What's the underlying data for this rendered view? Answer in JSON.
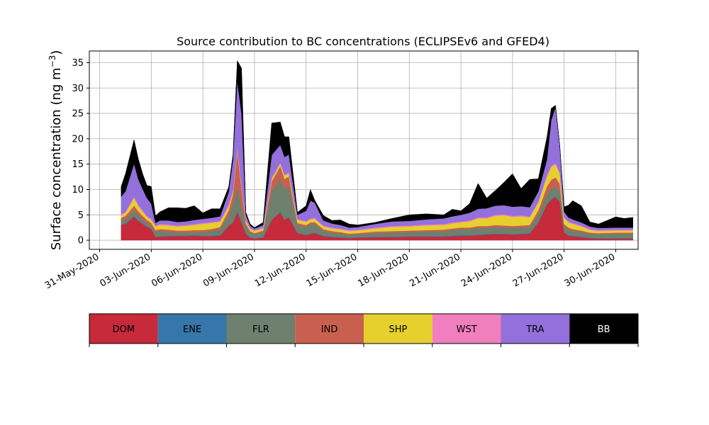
{
  "chart_data": {
    "type": "area",
    "stacked": true,
    "title": "Source contribution to BC concentrations (ECLIPSEv6 and GFED4)",
    "ylabel": "Surface concentration (ng m",
    "ylabel_exponent": "−3",
    "ylabel_suffix": ")",
    "ylim": [
      -1.8,
      37.3
    ],
    "yticks": [
      0,
      5,
      10,
      15,
      20,
      25,
      30,
      35
    ],
    "xlim": [
      -0.6,
      31.3
    ],
    "xtick_days": [
      0,
      3,
      6,
      9,
      12,
      15,
      18,
      21,
      24,
      27,
      30
    ],
    "xtick_labels": [
      "31-May-2020",
      "03-Jun-2020",
      "06-Jun-2020",
      "09-Jun-2020",
      "12-Jun-2020",
      "15-Jun-2020",
      "18-Jun-2020",
      "21-Jun-2020",
      "24-Jun-2020",
      "27-Jun-2020",
      "30-Jun-2020"
    ],
    "x_unit": "days since 31-May-2020",
    "grid": true,
    "x": [
      1.25,
      1.5,
      2.0,
      2.25,
      2.5,
      2.75,
      3.0,
      3.25,
      3.5,
      4.0,
      4.5,
      5.0,
      5.5,
      6.0,
      6.5,
      7.0,
      7.5,
      7.75,
      8.0,
      8.25,
      8.5,
      8.75,
      9.0,
      9.5,
      10.0,
      10.5,
      10.75,
      11.0,
      11.5,
      12.0,
      12.25,
      12.5,
      13.0,
      13.5,
      14.0,
      14.5,
      15.0,
      16.0,
      17.0,
      18.0,
      19.0,
      20.0,
      20.5,
      21.0,
      21.5,
      22.0,
      22.5,
      23.0,
      23.5,
      24.0,
      24.5,
      25.0,
      25.5,
      26.0,
      26.25,
      26.5,
      26.75,
      27.0,
      27.25,
      27.5,
      28.0,
      28.5,
      29.0,
      30.0,
      30.5,
      31.0
    ],
    "series": [
      {
        "name": "DOM",
        "color": "#c62a3b",
        "values": [
          3.0,
          3.2,
          4.6,
          3.8,
          3.2,
          2.6,
          2.2,
          0.6,
          0.7,
          0.8,
          0.8,
          0.8,
          0.9,
          0.8,
          0.8,
          0.9,
          2.8,
          3.5,
          5.5,
          3.5,
          1.2,
          0.5,
          0.3,
          0.5,
          4.0,
          5.5,
          4.0,
          4.5,
          1.4,
          1.0,
          1.2,
          1.4,
          0.8,
          0.6,
          0.5,
          0.4,
          0.5,
          0.6,
          0.6,
          0.7,
          0.7,
          0.7,
          0.8,
          0.9,
          0.9,
          1.0,
          1.1,
          1.2,
          1.2,
          1.1,
          1.2,
          1.3,
          3.5,
          7.0,
          8.0,
          8.5,
          7.5,
          1.5,
          0.9,
          0.8,
          0.6,
          0.4,
          0.3,
          0.3,
          0.3,
          0.3
        ]
      },
      {
        "name": "ENE",
        "color": "#3776ab",
        "values": [
          0.1,
          0.1,
          0.1,
          0.1,
          0.1,
          0.1,
          0.1,
          0.1,
          0.1,
          0.1,
          0.1,
          0.1,
          0.1,
          0.1,
          0.1,
          0.1,
          0.1,
          0.1,
          0.1,
          0.1,
          0.1,
          0.1,
          0.1,
          0.1,
          0.1,
          0.1,
          0.1,
          0.1,
          0.1,
          0.1,
          0.1,
          0.1,
          0.1,
          0.1,
          0.1,
          0.1,
          0.1,
          0.1,
          0.1,
          0.1,
          0.1,
          0.1,
          0.1,
          0.1,
          0.1,
          0.1,
          0.1,
          0.1,
          0.1,
          0.1,
          0.1,
          0.1,
          0.1,
          0.1,
          0.1,
          0.1,
          0.1,
          0.1,
          0.1,
          0.1,
          0.1,
          0.1,
          0.1,
          0.1,
          0.1,
          0.1
        ]
      },
      {
        "name": "FLR",
        "color": "#6e806e",
        "values": [
          0.7,
          0.8,
          1.2,
          1.0,
          0.8,
          0.7,
          0.6,
          0.9,
          1.0,
          0.8,
          0.6,
          0.6,
          0.6,
          0.7,
          0.9,
          1.2,
          2.0,
          3.5,
          5.0,
          3.0,
          1.5,
          0.9,
          0.8,
          1.0,
          5.5,
          6.5,
          6.0,
          6.0,
          1.5,
          1.5,
          1.8,
          1.7,
          1.0,
          0.8,
          0.7,
          0.6,
          0.6,
          0.7,
          0.8,
          0.8,
          0.9,
          1.0,
          1.1,
          1.2,
          1.2,
          1.3,
          1.2,
          1.3,
          1.2,
          1.2,
          1.2,
          1.2,
          1.5,
          2.0,
          2.0,
          2.0,
          2.0,
          1.2,
          1.1,
          1.0,
          0.9,
          0.8,
          0.8,
          0.9,
          0.9,
          0.9
        ]
      },
      {
        "name": "IND",
        "color": "#c9604f",
        "values": [
          0.6,
          0.7,
          0.9,
          0.8,
          0.7,
          0.6,
          0.5,
          0.4,
          0.4,
          0.4,
          0.4,
          0.4,
          0.4,
          0.4,
          0.4,
          0.4,
          1.0,
          2.0,
          7.0,
          3.5,
          0.5,
          0.3,
          0.2,
          0.3,
          2.0,
          2.5,
          2.0,
          2.0,
          0.4,
          0.4,
          0.4,
          0.4,
          0.3,
          0.3,
          0.3,
          0.2,
          0.2,
          0.3,
          0.3,
          0.3,
          0.3,
          0.3,
          0.3,
          0.3,
          0.3,
          0.4,
          0.4,
          0.4,
          0.4,
          0.4,
          0.4,
          0.4,
          0.8,
          1.5,
          1.8,
          1.8,
          1.5,
          0.4,
          0.4,
          0.3,
          0.3,
          0.2,
          0.2,
          0.2,
          0.2,
          0.2
        ]
      },
      {
        "name": "SHP",
        "color": "#e6d02e",
        "values": [
          0.5,
          0.6,
          1.5,
          1.0,
          0.8,
          0.6,
          0.6,
          0.7,
          0.8,
          0.8,
          0.8,
          0.9,
          1.0,
          1.2,
          1.2,
          1.0,
          0.8,
          0.5,
          0.5,
          0.5,
          0.5,
          0.4,
          0.4,
          0.4,
          0.5,
          0.5,
          0.6,
          0.6,
          0.6,
          0.6,
          0.6,
          0.6,
          0.5,
          0.5,
          0.5,
          0.5,
          0.5,
          0.6,
          0.8,
          0.8,
          0.9,
          0.9,
          1.0,
          1.0,
          1.2,
          1.5,
          1.5,
          1.8,
          2.0,
          1.8,
          1.8,
          1.5,
          1.5,
          2.0,
          2.5,
          2.5,
          2.0,
          1.2,
          1.0,
          1.0,
          0.8,
          0.5,
          0.4,
          0.4,
          0.4,
          0.4
        ]
      },
      {
        "name": "WST",
        "color": "#f07fbe",
        "values": [
          0.2,
          0.2,
          0.3,
          0.3,
          0.3,
          0.2,
          0.2,
          0.2,
          0.2,
          0.2,
          0.2,
          0.2,
          0.2,
          0.2,
          0.2,
          0.2,
          0.3,
          0.3,
          0.3,
          0.3,
          0.2,
          0.2,
          0.2,
          0.2,
          0.2,
          0.2,
          0.2,
          0.2,
          0.2,
          0.2,
          0.2,
          0.2,
          0.2,
          0.2,
          0.2,
          0.2,
          0.2,
          0.2,
          0.2,
          0.2,
          0.2,
          0.2,
          0.2,
          0.2,
          0.2,
          0.2,
          0.2,
          0.2,
          0.2,
          0.2,
          0.2,
          0.2,
          0.2,
          0.3,
          0.3,
          0.3,
          0.3,
          0.2,
          0.2,
          0.2,
          0.2,
          0.2,
          0.2,
          0.2,
          0.2,
          0.2
        ]
      },
      {
        "name": "TRA",
        "color": "#9370db",
        "values": [
          3.5,
          4.0,
          6.5,
          5.0,
          4.2,
          3.5,
          3.0,
          0.5,
          0.7,
          0.8,
          0.7,
          0.7,
          0.8,
          0.8,
          0.8,
          0.9,
          2.5,
          6.0,
          13.0,
          14.0,
          1.0,
          0.5,
          0.3,
          0.5,
          4.5,
          3.5,
          3.5,
          3.5,
          0.8,
          2.0,
          3.5,
          3.0,
          1.0,
          0.8,
          0.7,
          0.5,
          0.5,
          0.7,
          0.9,
          0.9,
          1.0,
          1.1,
          1.2,
          1.3,
          1.5,
          1.7,
          1.8,
          1.8,
          1.8,
          1.8,
          1.8,
          1.8,
          2.0,
          3.0,
          9.0,
          11.0,
          5.0,
          1.0,
          0.8,
          0.7,
          0.6,
          0.5,
          0.4,
          0.4,
          0.4,
          0.4
        ]
      },
      {
        "name": "BB",
        "color": "#000000",
        "values": [
          2.0,
          3.5,
          4.7,
          4.0,
          3.0,
          2.5,
          3.4,
          1.4,
          1.7,
          2.5,
          2.8,
          2.6,
          2.8,
          1.2,
          1.8,
          1.5,
          1.0,
          1.0,
          4.0,
          9.0,
          0.5,
          0.3,
          0.2,
          0.5,
          6.3,
          4.5,
          4.0,
          3.5,
          0.5,
          1.0,
          2.2,
          0.5,
          1.0,
          0.6,
          1.0,
          0.7,
          0.4,
          0.3,
          0.6,
          1.2,
          1.1,
          0.7,
          1.4,
          0.8,
          1.8,
          5.0,
          2.0,
          3.0,
          4.5,
          6.5,
          3.5,
          5.5,
          2.5,
          4.4,
          2.3,
          0.4,
          0.2,
          1.0,
          2.4,
          3.7,
          3.3,
          0.9,
          0.8,
          2.1,
          1.8,
          2.0
        ]
      }
    ]
  },
  "legend": {
    "items": [
      {
        "label": "DOM",
        "color": "#c62a3b",
        "text_color": "#000000"
      },
      {
        "label": "ENE",
        "color": "#3776ab",
        "text_color": "#000000"
      },
      {
        "label": "FLR",
        "color": "#6e806e",
        "text_color": "#000000"
      },
      {
        "label": "IND",
        "color": "#c9604f",
        "text_color": "#000000"
      },
      {
        "label": "SHP",
        "color": "#e6d02e",
        "text_color": "#000000"
      },
      {
        "label": "WST",
        "color": "#f07fbe",
        "text_color": "#000000"
      },
      {
        "label": "TRA",
        "color": "#9370db",
        "text_color": "#000000"
      },
      {
        "label": "BB",
        "color": "#000000",
        "text_color": "#ffffff"
      }
    ]
  }
}
